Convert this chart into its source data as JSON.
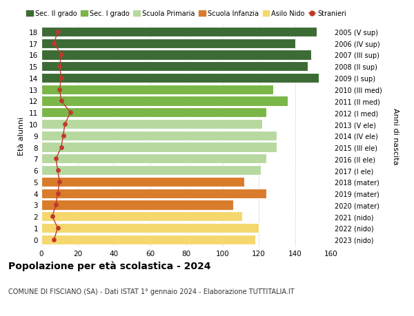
{
  "ages": [
    18,
    17,
    16,
    15,
    14,
    13,
    12,
    11,
    10,
    9,
    8,
    7,
    6,
    5,
    4,
    3,
    2,
    1,
    0
  ],
  "right_labels": [
    "2005 (V sup)",
    "2006 (IV sup)",
    "2007 (III sup)",
    "2008 (II sup)",
    "2009 (I sup)",
    "2010 (III med)",
    "2011 (II med)",
    "2012 (I med)",
    "2013 (V ele)",
    "2014 (IV ele)",
    "2015 (III ele)",
    "2016 (II ele)",
    "2017 (I ele)",
    "2018 (mater)",
    "2019 (mater)",
    "2020 (mater)",
    "2021 (nido)",
    "2022 (nido)",
    "2023 (nido)"
  ],
  "bar_values": [
    152,
    140,
    149,
    147,
    153,
    128,
    136,
    124,
    122,
    130,
    130,
    124,
    121,
    112,
    124,
    106,
    111,
    120,
    118
  ],
  "bar_colors": [
    "#3d6b35",
    "#3d6b35",
    "#3d6b35",
    "#3d6b35",
    "#3d6b35",
    "#7ab648",
    "#7ab648",
    "#7ab648",
    "#b7d9a0",
    "#b7d9a0",
    "#b7d9a0",
    "#b7d9a0",
    "#b7d9a0",
    "#d97c2b",
    "#d97c2b",
    "#d97c2b",
    "#f5d76e",
    "#f5d76e",
    "#f5d76e"
  ],
  "stranieri_values": [
    9,
    7,
    11,
    10,
    11,
    10,
    11,
    16,
    13,
    12,
    11,
    8,
    9,
    10,
    9,
    8,
    6,
    9,
    7
  ],
  "stranieri_color": "#c0392b",
  "xlim": [
    0,
    160
  ],
  "xticks": [
    0,
    20,
    40,
    60,
    80,
    100,
    120,
    140,
    160
  ],
  "ylabel_left": "Età alunni",
  "ylabel_right": "Anni di nascita",
  "title": "Popolazione per età scolastica - 2024",
  "subtitle": "COMUNE DI FISCIANO (SA) - Dati ISTAT 1° gennaio 2024 - Elaborazione TUTTITALIA.IT",
  "legend_items": [
    {
      "label": "Sec. II grado",
      "color": "#3d6b35"
    },
    {
      "label": "Sec. I grado",
      "color": "#7ab648"
    },
    {
      "label": "Scuola Primaria",
      "color": "#b7d9a0"
    },
    {
      "label": "Scuola Infanzia",
      "color": "#d97c2b"
    },
    {
      "label": "Asilo Nido",
      "color": "#f5d76e"
    },
    {
      "label": "Stranieri",
      "color": "#c0392b"
    }
  ],
  "bg_color": "#ffffff",
  "grid_color": "#cccccc",
  "bar_edge_color": "#ffffff",
  "bar_height": 0.85
}
